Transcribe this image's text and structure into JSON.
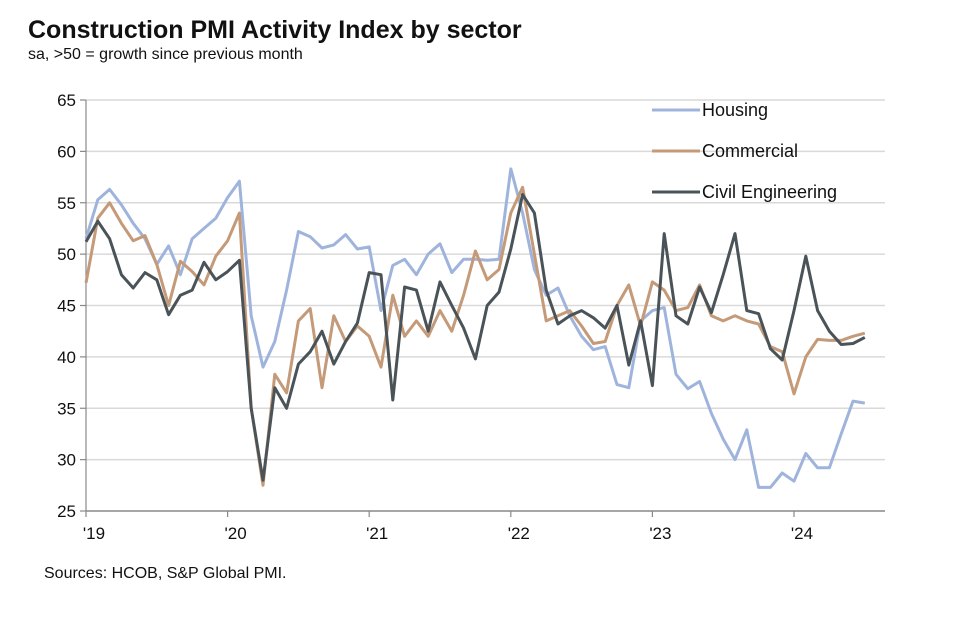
{
  "chart_data": {
    "type": "line",
    "title": "Construction PMI Activity Index by sector",
    "subtitle": "sa, >50 = growth since previous month",
    "source": "Sources: HCOB, S&P Global PMI.",
    "x_start": "2019-01",
    "x_end": "2024-07",
    "x_frequency": "monthly",
    "x_tick_labels": [
      "'19",
      "'20",
      "'21",
      "'22",
      "'23",
      "'24"
    ],
    "ylim": [
      25,
      65
    ],
    "y_ticks": [
      25,
      30,
      35,
      40,
      45,
      50,
      55,
      60,
      65
    ],
    "grid": "horizontal",
    "legend_position": "top-right",
    "series": [
      {
        "name": "Housing",
        "color": "#9fb4dc",
        "values": [
          51.5,
          55.3,
          56.3,
          54.8,
          53.0,
          51.5,
          49.0,
          50.8,
          48.0,
          51.5,
          52.5,
          53.5,
          55.5,
          57.1,
          44.0,
          39.0,
          41.5,
          46.5,
          52.2,
          51.7,
          50.6,
          50.9,
          51.9,
          50.5,
          50.7,
          44.5,
          48.9,
          49.5,
          48.0,
          50.0,
          51.0,
          48.2,
          49.5,
          49.5,
          49.4,
          49.5,
          58.3,
          54.0,
          48.5,
          46.0,
          46.7,
          44.0,
          42.0,
          40.7,
          41.0,
          37.3,
          37.0,
          43.5,
          44.5,
          44.8,
          38.3,
          36.9,
          37.6,
          34.5,
          32.0,
          30.0,
          32.9,
          27.3,
          27.3,
          28.7,
          27.9,
          30.6,
          29.2,
          29.2,
          32.5,
          35.7,
          35.5
        ]
      },
      {
        "name": "Commercial",
        "color": "#c49a78",
        "values": [
          47.2,
          53.5,
          55.0,
          53.0,
          51.3,
          51.8,
          49.0,
          45.0,
          49.3,
          48.3,
          47.0,
          49.8,
          51.3,
          54.0,
          35.0,
          27.5,
          38.3,
          36.5,
          43.5,
          44.7,
          37.0,
          44.0,
          41.5,
          43.0,
          42.0,
          39.0,
          46.0,
          42.0,
          43.5,
          42.0,
          44.5,
          42.5,
          46.0,
          50.3,
          47.5,
          48.5,
          54.0,
          56.5,
          50.0,
          43.5,
          44.0,
          44.5,
          43.0,
          41.3,
          41.5,
          45.0,
          47.0,
          43.0,
          47.3,
          46.5,
          44.5,
          44.8,
          47.0,
          44.0,
          43.5,
          44.0,
          43.5,
          43.2,
          41.0,
          40.5,
          36.4,
          40.0,
          41.7,
          41.6,
          41.6,
          42.0,
          42.3
        ]
      },
      {
        "name": "Civil Engineering",
        "color": "#4a5358",
        "values": [
          51.2,
          53.2,
          51.5,
          48.0,
          46.7,
          48.2,
          47.5,
          44.1,
          46.0,
          46.5,
          49.2,
          47.5,
          48.3,
          49.4,
          35.0,
          28.0,
          37.0,
          35.0,
          39.3,
          40.5,
          42.5,
          39.3,
          41.5,
          43.3,
          48.2,
          48.0,
          35.8,
          46.8,
          46.5,
          42.5,
          47.3,
          45.0,
          42.8,
          39.8,
          45.0,
          46.3,
          50.5,
          55.8,
          54.0,
          46.5,
          43.2,
          44.0,
          44.5,
          43.8,
          42.8,
          45.0,
          39.2,
          43.5,
          37.2,
          52.0,
          44.0,
          43.2,
          46.8,
          44.3,
          48.0,
          52.0,
          44.5,
          44.2,
          40.8,
          39.7,
          44.5,
          49.8,
          44.5,
          42.5,
          41.2,
          41.3,
          41.9
        ]
      }
    ]
  }
}
